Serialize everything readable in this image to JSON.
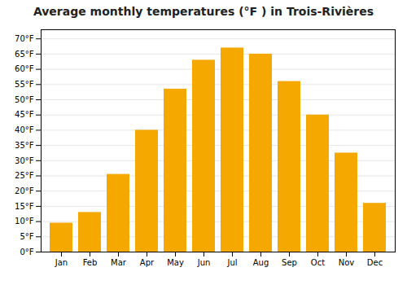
{
  "chart_data": {
    "type": "bar",
    "title": "Average monthly temperatures (°F ) in Trois-Rivières",
    "categories": [
      "Jan",
      "Feb",
      "Mar",
      "Apr",
      "May",
      "Jun",
      "Jul",
      "Aug",
      "Sep",
      "Oct",
      "Nov",
      "Dec"
    ],
    "values": [
      9.5,
      13,
      25.5,
      40,
      53.5,
      63,
      67,
      65,
      56,
      45,
      32.5,
      16
    ],
    "color": "#F5A800",
    "ylim": [
      0,
      73
    ],
    "yticks": [
      {
        "value": 0,
        "label": "0°F"
      },
      {
        "value": 5,
        "label": "5°F"
      },
      {
        "value": 10,
        "label": "10°F"
      },
      {
        "value": 15,
        "label": "15°F"
      },
      {
        "value": 20,
        "label": "20°F"
      },
      {
        "value": 25,
        "label": "25°F"
      },
      {
        "value": 30,
        "label": "30°F"
      },
      {
        "value": 35,
        "label": "35°F"
      },
      {
        "value": 40,
        "label": "40°F"
      },
      {
        "value": 45,
        "label": "45°F"
      },
      {
        "value": 50,
        "label": "50°F"
      },
      {
        "value": 55,
        "label": "55°F"
      },
      {
        "value": 60,
        "label": "60°F"
      },
      {
        "value": 65,
        "label": "65°F"
      },
      {
        "value": 70,
        "label": "70°F"
      }
    ],
    "grid": true
  }
}
